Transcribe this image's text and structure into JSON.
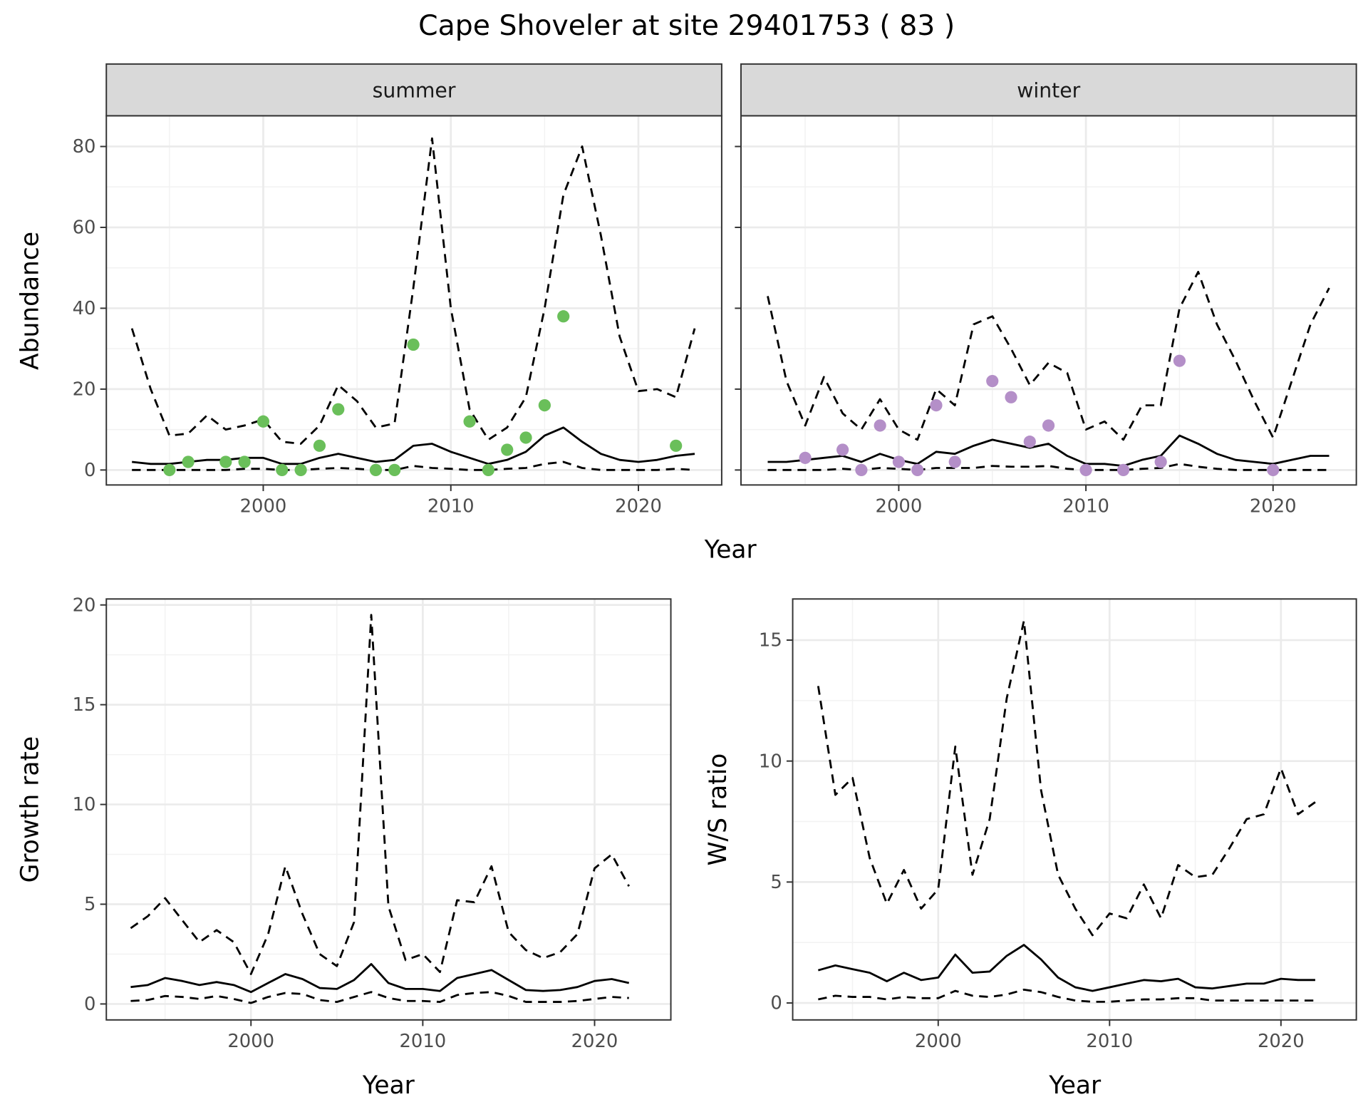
{
  "chart_data": [
    {
      "type": "line",
      "panel": "summer",
      "title": "Cape Shoveler at site 29401753 ( 83 )",
      "strip": "summer",
      "xlabel": "Year",
      "ylabel": "Abundance",
      "xticks": [
        2000,
        2010,
        2020
      ],
      "yticks": [
        0,
        20,
        40,
        60,
        80
      ],
      "ylim": [
        -3.7,
        87.6
      ],
      "x": [
        1993,
        1994,
        1995,
        1996,
        1997,
        1998,
        1999,
        2000,
        2001,
        2002,
        2003,
        2004,
        2005,
        2006,
        2007,
        2008,
        2009,
        2010,
        2011,
        2012,
        2013,
        2014,
        2015,
        2016,
        2017,
        2018,
        2019,
        2020,
        2021,
        2022,
        2023
      ],
      "series": [
        {
          "name": "upper",
          "style": "dashed",
          "values": [
            35,
            20,
            8.5,
            9,
            13.5,
            10,
            11,
            12.5,
            7,
            6.5,
            11,
            21,
            17,
            10.5,
            11.5,
            45,
            82,
            40,
            15,
            7.5,
            10.5,
            18,
            40,
            68,
            80,
            58,
            33,
            19.5,
            20,
            18,
            35
          ]
        },
        {
          "name": "mean",
          "style": "solid",
          "values": [
            2,
            1.5,
            1.5,
            2,
            2.5,
            2.5,
            3,
            3,
            1.5,
            1.5,
            3,
            4,
            3,
            2,
            2.5,
            6,
            6.5,
            4.5,
            3,
            1.5,
            2.5,
            4.5,
            8.5,
            10.5,
            7,
            4,
            2.5,
            2,
            2.5,
            3.5,
            4
          ]
        },
        {
          "name": "lower",
          "style": "dashed",
          "values": [
            0,
            0,
            0,
            0,
            0,
            0,
            0.3,
            0.3,
            0,
            0,
            0.3,
            0.5,
            0.3,
            0,
            0,
            1,
            0.5,
            0.3,
            0,
            0,
            0.3,
            0.5,
            1.5,
            2,
            0.5,
            0,
            0,
            0,
            0,
            0.3,
            0
          ]
        }
      ],
      "points": {
        "color": "#6abf5a",
        "x": [
          1995,
          1996,
          1998,
          1999,
          2000,
          2001,
          2002,
          2003,
          2004,
          2006,
          2007,
          2008,
          2011,
          2012,
          2013,
          2014,
          2015,
          2016,
          2022
        ],
        "values": [
          0,
          2,
          2,
          2,
          12,
          0,
          0,
          6,
          15,
          0,
          0,
          31,
          12,
          0,
          5,
          8,
          16,
          38,
          6
        ]
      }
    },
    {
      "type": "line",
      "panel": "winter",
      "strip": "winter",
      "xticks": [
        2000,
        2010,
        2020
      ],
      "ylim": [
        -3.7,
        87.6
      ],
      "x": [
        1993,
        1994,
        1995,
        1996,
        1997,
        1998,
        1999,
        2000,
        2001,
        2002,
        2003,
        2004,
        2005,
        2006,
        2007,
        2008,
        2009,
        2010,
        2011,
        2012,
        2013,
        2014,
        2015,
        2016,
        2017,
        2018,
        2019,
        2020,
        2021,
        2022,
        2023
      ],
      "series": [
        {
          "name": "upper",
          "style": "dashed",
          "values": [
            43,
            22,
            11,
            23,
            14,
            10,
            17.5,
            10,
            7.5,
            20,
            16,
            36,
            38,
            30,
            21,
            26.5,
            24,
            10,
            12,
            7.5,
            16,
            16,
            40,
            49,
            36,
            27,
            17,
            8,
            22,
            36,
            45
          ]
        },
        {
          "name": "mean",
          "style": "solid",
          "values": [
            2,
            2,
            2.5,
            3,
            3.5,
            2,
            4,
            2.5,
            1.5,
            4.5,
            4,
            6,
            7.5,
            6.5,
            5.5,
            6.5,
            3.5,
            1.5,
            1.5,
            1,
            2.5,
            3.5,
            8.5,
            6.5,
            4,
            2.5,
            2,
            1.5,
            2.5,
            3.5,
            3.5
          ]
        },
        {
          "name": "lower",
          "style": "dashed",
          "values": [
            0,
            0,
            0,
            0,
            0.3,
            0,
            0.5,
            0.3,
            0,
            0.5,
            0.5,
            0.5,
            1,
            0.8,
            0.8,
            1,
            0.3,
            0,
            0,
            0,
            0.3,
            0.5,
            1.5,
            0.8,
            0.3,
            0,
            0,
            0,
            0,
            0,
            0
          ]
        }
      ],
      "points": {
        "color": "#b48fc8",
        "x": [
          1995,
          1997,
          1998,
          1999,
          2000,
          2001,
          2002,
          2003,
          2005,
          2006,
          2007,
          2008,
          2010,
          2012,
          2014,
          2015,
          2020
        ],
        "values": [
          3,
          5,
          0,
          11,
          2,
          0,
          16,
          2,
          22,
          18,
          7,
          11,
          0,
          0,
          2,
          27,
          0
        ]
      }
    },
    {
      "type": "line",
      "panel": "growth",
      "xlabel": "Year",
      "ylabel": "Growth rate",
      "xticks": [
        2000,
        2010,
        2020
      ],
      "yticks": [
        0,
        5,
        10,
        15,
        20
      ],
      "ylim": [
        -0.8,
        20.3
      ],
      "x": [
        1993,
        1994,
        1995,
        1996,
        1997,
        1998,
        1999,
        2000,
        2001,
        2002,
        2003,
        2004,
        2005,
        2006,
        2007,
        2008,
        2009,
        2010,
        2011,
        2012,
        2013,
        2014,
        2015,
        2016,
        2017,
        2018,
        2019,
        2020,
        2021,
        2022
      ],
      "series": [
        {
          "name": "upper",
          "style": "dashed",
          "values": [
            3.8,
            4.4,
            5.3,
            4.2,
            3.1,
            3.7,
            3.1,
            1.5,
            3.5,
            6.9,
            4.5,
            2.5,
            1.9,
            4.1,
            19.5,
            4.9,
            2.2,
            2.5,
            1.6,
            5.2,
            5.1,
            6.9,
            3.6,
            2.7,
            2.3,
            2.6,
            3.5,
            6.8,
            7.5,
            5.9
          ]
        },
        {
          "name": "mean",
          "style": "solid",
          "values": [
            0.85,
            0.95,
            1.3,
            1.15,
            0.95,
            1.1,
            0.95,
            0.6,
            1.05,
            1.5,
            1.25,
            0.8,
            0.75,
            1.2,
            2.0,
            1.05,
            0.75,
            0.75,
            0.65,
            1.3,
            1.5,
            1.7,
            1.2,
            0.7,
            0.65,
            0.7,
            0.85,
            1.15,
            1.25,
            1.05
          ]
        },
        {
          "name": "lower",
          "style": "dashed",
          "values": [
            0.15,
            0.2,
            0.4,
            0.35,
            0.25,
            0.4,
            0.25,
            0.05,
            0.35,
            0.55,
            0.5,
            0.2,
            0.1,
            0.35,
            0.6,
            0.3,
            0.15,
            0.15,
            0.1,
            0.45,
            0.55,
            0.6,
            0.4,
            0.1,
            0.1,
            0.1,
            0.15,
            0.25,
            0.35,
            0.3
          ]
        }
      ]
    },
    {
      "type": "line",
      "panel": "ratio",
      "xlabel": "Year",
      "ylabel": "W/S ratio",
      "xticks": [
        2000,
        2010,
        2020
      ],
      "yticks": [
        0,
        5,
        10,
        15
      ],
      "ylim": [
        -0.7,
        16.7
      ],
      "x": [
        1993,
        1994,
        1995,
        1996,
        1997,
        1998,
        1999,
        2000,
        2001,
        2002,
        2003,
        2004,
        2005,
        2006,
        2007,
        2008,
        2009,
        2010,
        2011,
        2012,
        2013,
        2014,
        2015,
        2016,
        2017,
        2018,
        2019,
        2020,
        2021,
        2022
      ],
      "series": [
        {
          "name": "upper",
          "style": "dashed",
          "values": [
            13.1,
            8.6,
            9.3,
            6.0,
            4.1,
            5.5,
            3.9,
            4.7,
            10.6,
            5.3,
            7.6,
            12.6,
            15.8,
            8.8,
            5.3,
            3.9,
            2.8,
            3.7,
            3.5,
            4.9,
            3.5,
            5.7,
            5.2,
            5.3,
            6.4,
            7.6,
            7.8,
            9.7,
            7.8,
            8.3
          ]
        },
        {
          "name": "mean",
          "style": "solid",
          "values": [
            1.35,
            1.55,
            1.4,
            1.25,
            0.9,
            1.25,
            0.95,
            1.05,
            2.0,
            1.25,
            1.3,
            1.95,
            2.4,
            1.8,
            1.05,
            0.65,
            0.5,
            0.65,
            0.8,
            0.95,
            0.9,
            1.0,
            0.65,
            0.6,
            0.7,
            0.8,
            0.8,
            1.0,
            0.95,
            0.95
          ]
        },
        {
          "name": "lower",
          "style": "dashed",
          "values": [
            0.15,
            0.3,
            0.25,
            0.25,
            0.15,
            0.25,
            0.2,
            0.2,
            0.5,
            0.3,
            0.25,
            0.35,
            0.55,
            0.45,
            0.25,
            0.1,
            0.05,
            0.05,
            0.1,
            0.15,
            0.15,
            0.2,
            0.2,
            0.1,
            0.1,
            0.1,
            0.1,
            0.1,
            0.1,
            0.1
          ]
        }
      ]
    }
  ]
}
